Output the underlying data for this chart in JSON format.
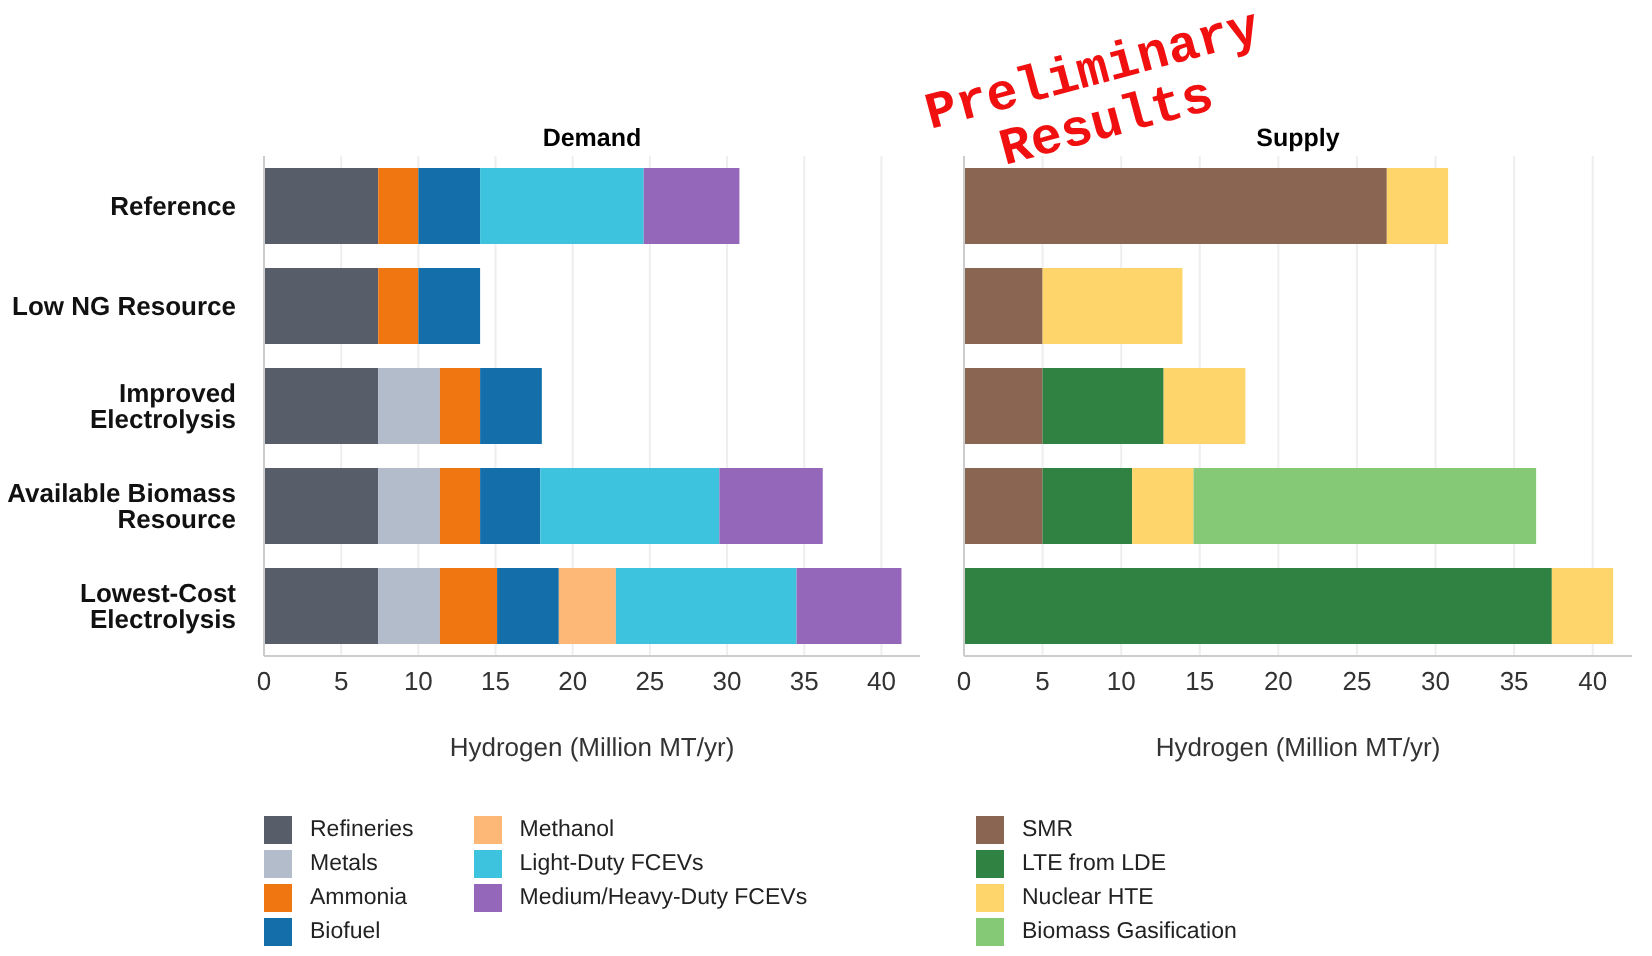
{
  "chart_data": [
    {
      "type": "bar",
      "orientation": "horizontal",
      "stacked": true,
      "title": "Demand",
      "xlabel": "Hydrogen (Million MT/yr)",
      "categories": [
        "Reference",
        "Low NG Resource",
        "Improved Electrolysis",
        "Available Biomass Resource",
        "Lowest-Cost Electrolysis"
      ],
      "series": [
        {
          "name": "Refineries",
          "color": "#575d69",
          "values": [
            7.4,
            7.4,
            7.4,
            7.4,
            7.4
          ]
        },
        {
          "name": "Metals",
          "color": "#b3bccb",
          "values": [
            null,
            null,
            4.0,
            4.0,
            4.0
          ]
        },
        {
          "name": "Ammonia",
          "color": "#ef7611",
          "values": [
            2.6,
            2.6,
            2.6,
            2.6,
            3.7
          ]
        },
        {
          "name": "Biofuel",
          "color": "#136ea9",
          "values": [
            4.0,
            4.0,
            4.0,
            3.9,
            4.0
          ]
        },
        {
          "name": "Methanol",
          "color": "#fdb877",
          "values": [
            null,
            null,
            null,
            null,
            3.7
          ]
        },
        {
          "name": "Light-Duty FCEVs",
          "color": "#3ec3de",
          "values": [
            10.6,
            null,
            null,
            11.6,
            11.7
          ]
        },
        {
          "name": "Medium/Heavy-Duty FCEVs",
          "color": "#9467ba",
          "values": [
            6.2,
            null,
            null,
            6.7,
            6.8
          ]
        }
      ],
      "xlim": [
        0,
        42.5
      ],
      "xticks": [
        0,
        5,
        10,
        15,
        20,
        25,
        30,
        35,
        40
      ],
      "grid": "x",
      "legend": "bottom",
      "annotations": [
        "Preliminary Results"
      ]
    },
    {
      "type": "bar",
      "orientation": "horizontal",
      "stacked": true,
      "title": "Supply",
      "xlabel": "Hydrogen (Million MT/yr)",
      "categories": [
        null,
        null,
        null,
        null,
        null
      ],
      "series": [
        {
          "name": "SMR",
          "color": "#8a6652",
          "values": [
            26.9,
            5.0,
            5.0,
            5.0,
            null
          ]
        },
        {
          "name": "LTE from LDE",
          "color": "#2f8242",
          "values": [
            null,
            null,
            7.7,
            5.7,
            37.4
          ]
        },
        {
          "name": "Nuclear HTE",
          "color": "#fdd56a",
          "values": [
            3.9,
            8.9,
            5.2,
            3.9,
            3.9
          ]
        },
        {
          "name": "Biomass Gasification",
          "color": "#85c976",
          "values": [
            null,
            null,
            null,
            21.8,
            null
          ]
        }
      ],
      "xlim": [
        0,
        42.5
      ],
      "xticks": [
        0,
        5,
        10,
        15,
        20,
        25,
        30,
        35,
        40
      ],
      "grid": "x",
      "legend": "bottom",
      "tick_labels": "x"
    }
  ]
}
